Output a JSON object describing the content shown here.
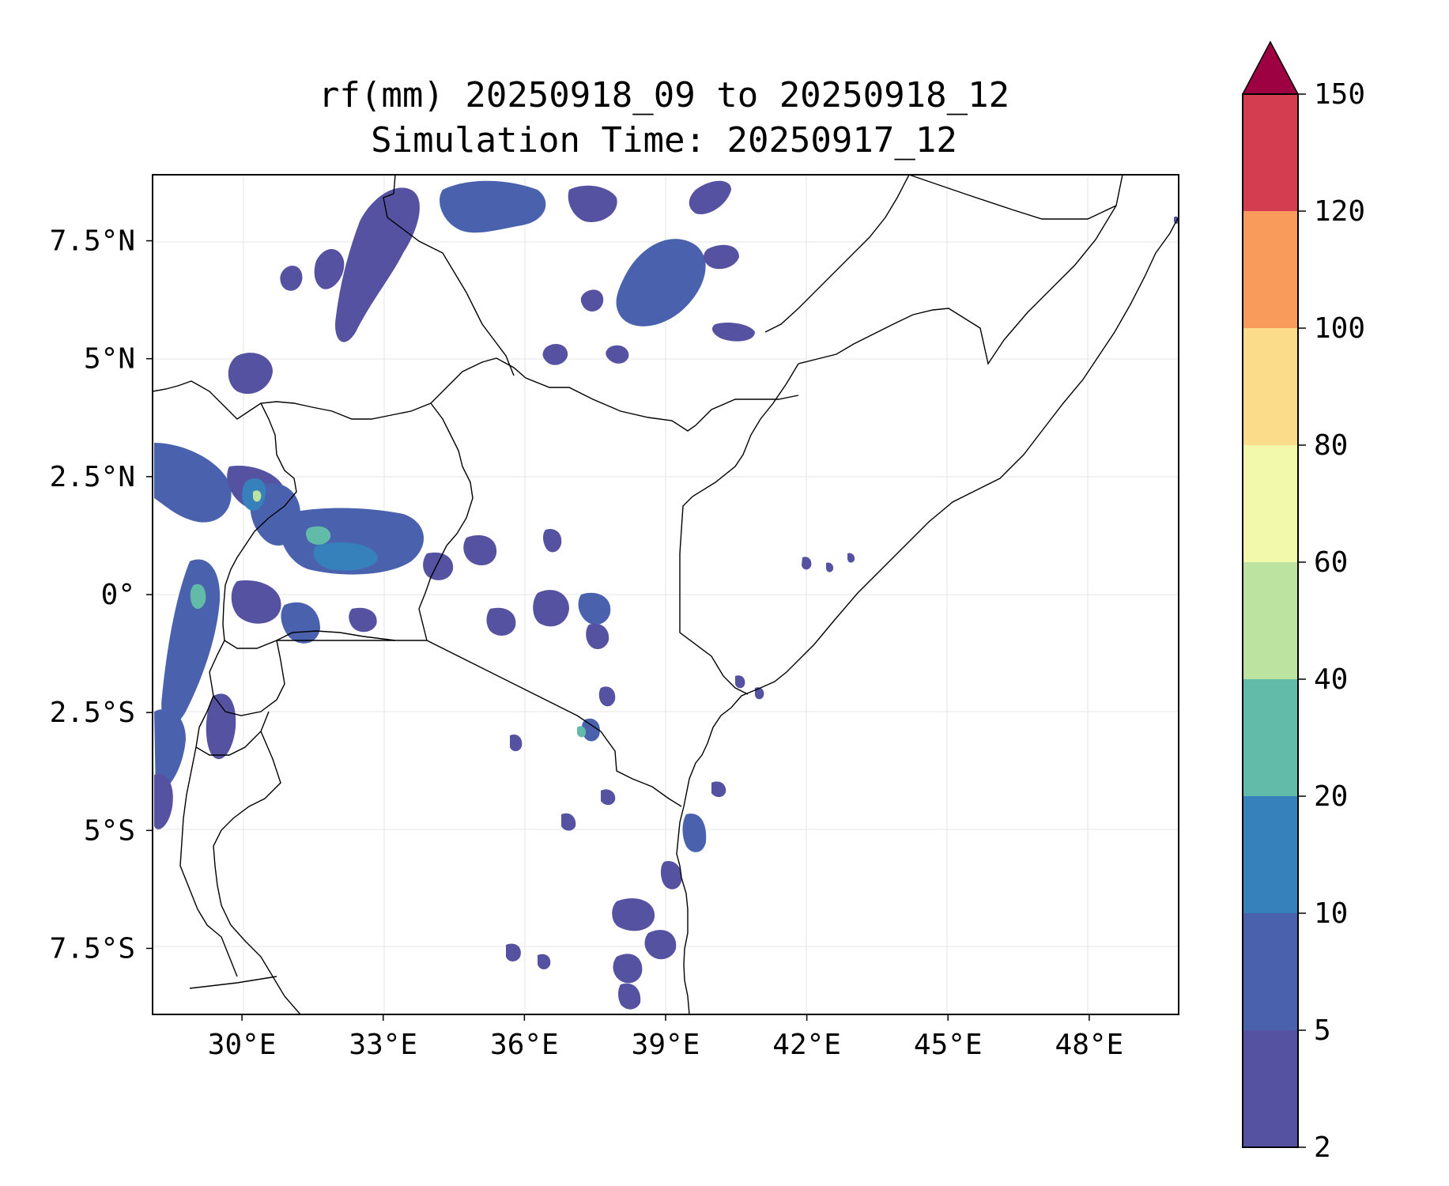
{
  "title": {
    "line1": "rf(mm) 20250918_09 to 20250918_12",
    "line2": "Simulation Time: 20250917_12"
  },
  "map": {
    "lon_ticks": [
      "30°E",
      "33°E",
      "36°E",
      "39°E",
      "42°E",
      "45°E",
      "48°E"
    ],
    "lat_ticks": [
      "7.5°N",
      "5°N",
      "2.5°N",
      "0°",
      "2.5°S",
      "5°S",
      "7.5°S"
    ],
    "lon_range": [
      28.1,
      49.9
    ],
    "lat_range": [
      -8.9,
      8.9
    ],
    "gridlines": true
  },
  "colorbar": {
    "levels": [
      "2",
      "5",
      "10",
      "20",
      "40",
      "60",
      "80",
      "100",
      "120",
      "150"
    ],
    "colors": [
      "#5652a2",
      "#4a62ad",
      "#3680bb",
      "#62bba8",
      "#bde3a0",
      "#f3f9ab",
      "#fbdc8b",
      "#f99c5b",
      "#d43d4f"
    ],
    "extend_color": "#9e0142",
    "extend": "max"
  },
  "rain_colors": {
    "low": "#5652a2",
    "mid": "#4a62ad",
    "high": "#3680bb",
    "peak": "#62bba8"
  }
}
